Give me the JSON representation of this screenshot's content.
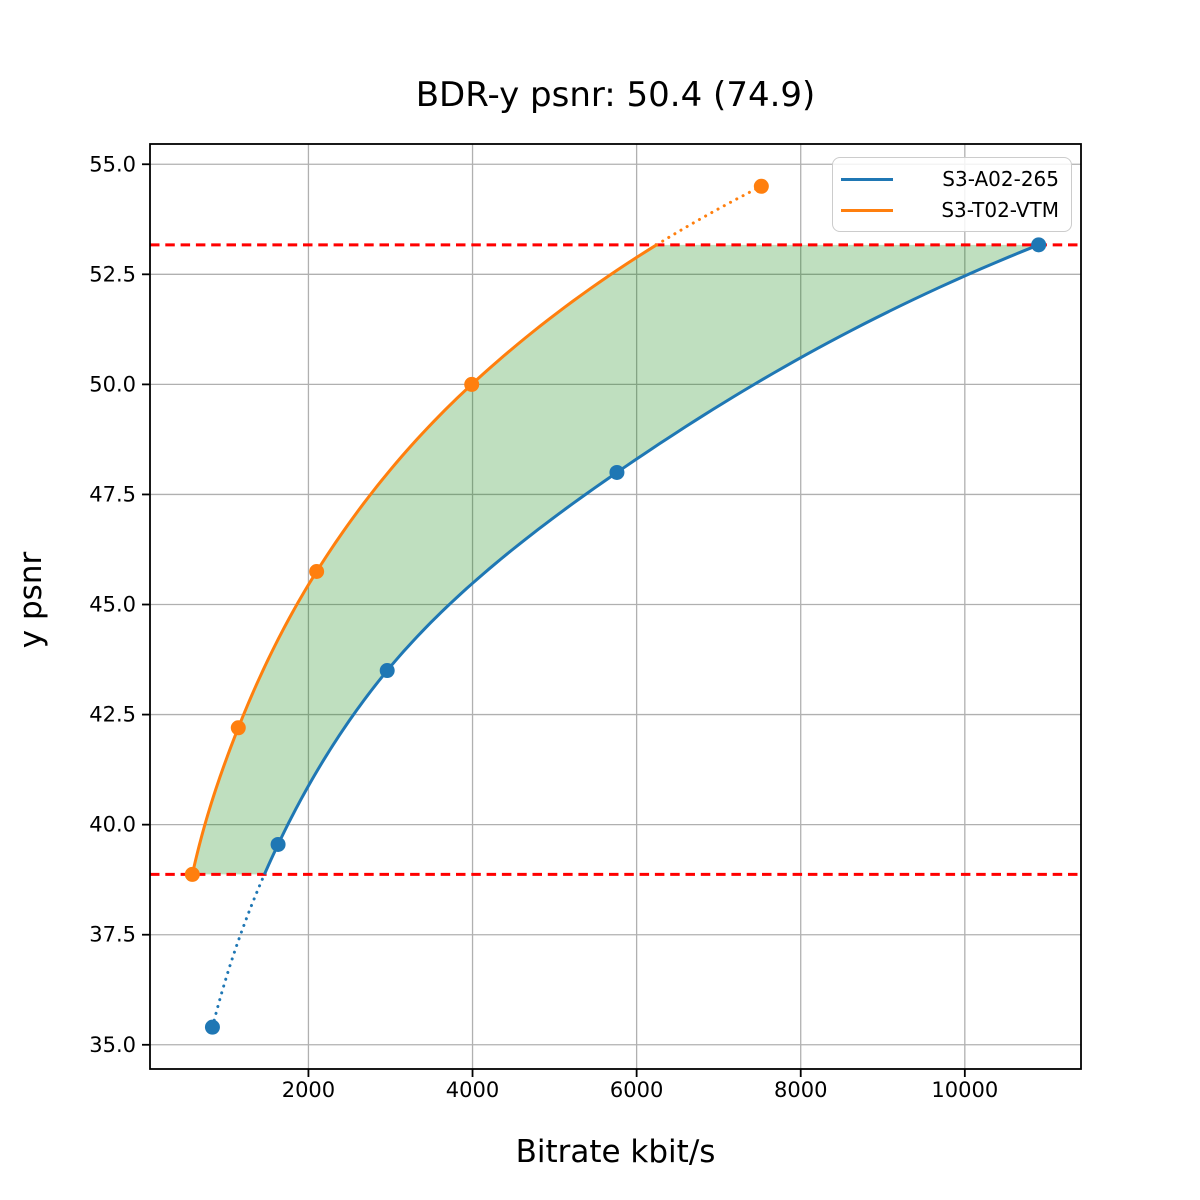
{
  "chart_data": {
    "type": "line",
    "title": "BDR-y psnr: 50.4 (74.9)",
    "xlabel": "Bitrate kbit/s",
    "ylabel": "y psnr",
    "xlim": [
      69,
      11416
    ],
    "ylim": [
      34.45,
      55.46
    ],
    "grid": true,
    "grid_color": "#b0b0b0",
    "x_ticks": [
      {
        "value": 2000,
        "label": "2000"
      },
      {
        "value": 4000,
        "label": "4000"
      },
      {
        "value": 6000,
        "label": "6000"
      },
      {
        "value": 8000,
        "label": "8000"
      },
      {
        "value": 10000,
        "label": "10000"
      }
    ],
    "y_ticks": [
      {
        "value": 35.0,
        "label": "35.0"
      },
      {
        "value": 37.5,
        "label": "37.5"
      },
      {
        "value": 40.0,
        "label": "40.0"
      },
      {
        "value": 42.5,
        "label": "42.5"
      },
      {
        "value": 45.0,
        "label": "45.0"
      },
      {
        "value": 47.5,
        "label": "47.5"
      },
      {
        "value": 50.0,
        "label": "50.0"
      },
      {
        "value": 52.5,
        "label": "52.5"
      },
      {
        "value": 55.0,
        "label": "55.0"
      }
    ],
    "series": [
      {
        "name": "S3-A02-265",
        "color": "#1f77b4",
        "marker": "circle",
        "points": [
          [
            830,
            35.4
          ],
          [
            1630,
            39.55
          ],
          [
            2960,
            43.5
          ],
          [
            5760,
            48.0
          ],
          [
            10900,
            53.17
          ]
        ]
      },
      {
        "name": "S3-T02-VTM",
        "color": "#ff7f0e",
        "marker": "circle",
        "points": [
          [
            585,
            38.87
          ],
          [
            1145,
            42.2
          ],
          [
            2100,
            45.75
          ],
          [
            3990,
            50.0
          ],
          [
            7520,
            54.5
          ]
        ]
      }
    ],
    "overlap_band": {
      "y_low": 38.87,
      "y_high": 53.17,
      "line_color": "#ff0000",
      "line_style": "dashed",
      "fill_color": "#008000",
      "fill_opacity": 0.25
    },
    "legend_position": "upper right"
  }
}
